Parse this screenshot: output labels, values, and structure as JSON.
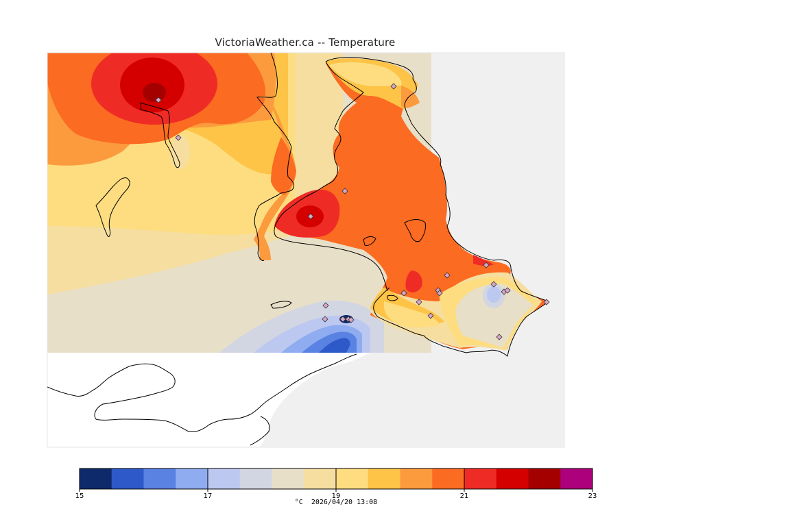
{
  "title": "VictoriaWeather.ca -- Temperature",
  "legend": {
    "colors": [
      "#0f2a6b",
      "#2d5ac8",
      "#5a82e3",
      "#8eacef",
      "#bcc8ef",
      "#d2d6e3",
      "#e8dfc8",
      "#f5dea0",
      "#fddd80",
      "#fdc447",
      "#fc9a3e",
      "#fb6b21",
      "#ef2b25",
      "#d40000",
      "#a50000",
      "#ad007c"
    ],
    "ticks": [
      {
        "value": 15,
        "label": "15"
      },
      {
        "value": 17,
        "label": "17"
      },
      {
        "value": 19,
        "label": "19"
      },
      {
        "value": 21,
        "label": "21"
      },
      {
        "value": 23,
        "label": "23"
      }
    ],
    "min": 15,
    "max": 23
  },
  "footer": {
    "unit": "°C",
    "timestamp": "2026/04/20 13:08"
  }
}
